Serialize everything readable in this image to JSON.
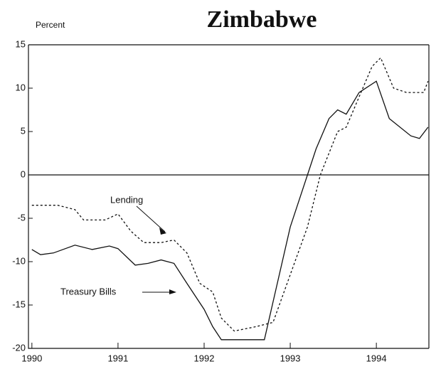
{
  "chart_data": {
    "type": "line",
    "title": "Zimbabwe",
    "y_label": "Percent",
    "xlim": [
      1989.96,
      1994.61
    ],
    "ylim": [
      -20,
      15
    ],
    "xticks": [
      1990,
      1991,
      1992,
      1993,
      1994
    ],
    "yticks": [
      -20,
      -15,
      -10,
      -5,
      0,
      5,
      10,
      15
    ],
    "series": [
      {
        "name": "Lending",
        "color": "#111111",
        "dash": true,
        "x": [
          1990.0,
          1990.3,
          1990.5,
          1990.6,
          1990.85,
          1991.0,
          1991.15,
          1991.3,
          1991.5,
          1991.65,
          1991.8,
          1991.95,
          1992.1,
          1992.2,
          1992.35,
          1992.6,
          1992.8,
          1993.2,
          1993.35,
          1993.55,
          1993.65,
          1993.8,
          1993.95,
          1994.05,
          1994.2,
          1994.35,
          1994.55,
          1994.6
        ],
        "values": [
          -3.5,
          -3.5,
          -4.0,
          -5.2,
          -5.2,
          -4.5,
          -6.5,
          -7.8,
          -7.8,
          -7.5,
          -9.0,
          -12.5,
          -13.5,
          -16.5,
          -18.0,
          -17.5,
          -17.0,
          -6.0,
          0.0,
          5.0,
          5.5,
          9.0,
          12.5,
          13.5,
          10.0,
          9.5,
          9.5,
          10.8
        ]
      },
      {
        "name": "Treasury Bills",
        "color": "#111111",
        "dash": false,
        "x": [
          1990.0,
          1990.1,
          1990.25,
          1990.5,
          1990.7,
          1990.9,
          1991.0,
          1991.2,
          1991.35,
          1991.5,
          1991.65,
          1991.8,
          1992.0,
          1992.1,
          1992.2,
          1992.7,
          1993.0,
          1993.2,
          1993.3,
          1993.45,
          1993.55,
          1993.65,
          1993.8,
          1994.0,
          1994.15,
          1994.4,
          1994.5,
          1994.6
        ],
        "values": [
          -8.6,
          -9.2,
          -9.0,
          -8.1,
          -8.6,
          -8.2,
          -8.5,
          -10.4,
          -10.2,
          -9.8,
          -10.2,
          -12.5,
          -15.5,
          -17.5,
          -19.0,
          -19.0,
          -6.0,
          0.0,
          3.0,
          6.5,
          7.5,
          7.0,
          9.5,
          10.8,
          6.5,
          4.5,
          4.2,
          5.5
        ]
      }
    ]
  }
}
